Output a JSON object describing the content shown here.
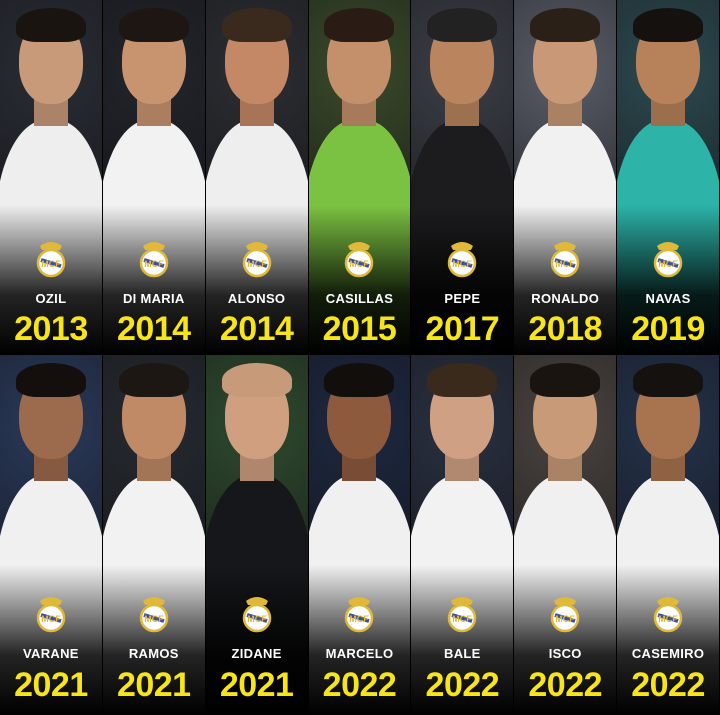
{
  "players": [
    {
      "name": "OZIL",
      "year": "2013",
      "kit": "#eeeeee",
      "bg": "#2a2d35",
      "hair": "#1a1410",
      "skin": "#c99a7a"
    },
    {
      "name": "DI MARIA",
      "year": "2014",
      "kit": "#f2f2f2",
      "bg": "#22252b",
      "hair": "#1d1612",
      "skin": "#c8946f"
    },
    {
      "name": "ALONSO",
      "year": "2014",
      "kit": "#eeeeee",
      "bg": "#2c2e33",
      "hair": "#3a2a1e",
      "skin": "#c48866"
    },
    {
      "name": "CASILLAS",
      "year": "2015",
      "kit": "#7cc242",
      "bg": "#3a4a2a",
      "hair": "#2a1c14",
      "skin": "#c4906c"
    },
    {
      "name": "PEPE",
      "year": "2017",
      "kit": "#1c1c1e",
      "bg": "#3b3f46",
      "hair": "#222",
      "skin": "#b9845e"
    },
    {
      "name": "RONALDO",
      "year": "2018",
      "kit": "#f1f1f1",
      "bg": "#5a5e68",
      "hair": "#2a2018",
      "skin": "#c99876"
    },
    {
      "name": "NAVAS",
      "year": "2019",
      "kit": "#2db3a8",
      "bg": "#2d4a50",
      "hair": "#15110e",
      "skin": "#b78259"
    },
    {
      "name": "VARANE",
      "year": "2021",
      "kit": "#f0f0f0",
      "bg": "#2a3a5a",
      "hair": "#140f0c",
      "skin": "#9c6a4c"
    },
    {
      "name": "RAMOS",
      "year": "2021",
      "kit": "#f2f2f2",
      "bg": "#262a30",
      "hair": "#1c1712",
      "skin": "#c08a66"
    },
    {
      "name": "ZIDANE",
      "year": "2021",
      "kit": "#16171a",
      "bg": "#2f4a2e",
      "hair": "#c79a7a",
      "skin": "#cf9f80"
    },
    {
      "name": "MARCELO",
      "year": "2022",
      "kit": "#f0f0f0",
      "bg": "#1e2840",
      "hair": "#120e0c",
      "skin": "#8d5a3e"
    },
    {
      "name": "BALE",
      "year": "2022",
      "kit": "#f2f2f2",
      "bg": "#2a3040",
      "hair": "#3a2a1c",
      "skin": "#d0a084"
    },
    {
      "name": "ISCO",
      "year": "2022",
      "kit": "#f0f0f0",
      "bg": "#4a4440",
      "hair": "#1a1410",
      "skin": "#c89a78"
    },
    {
      "name": "CASEMIRO",
      "year": "2022",
      "kit": "#f0f0f0",
      "bg": "#24324a",
      "hair": "#15110e",
      "skin": "#a8734f"
    }
  ],
  "colors": {
    "year": "#f7e51a",
    "name": "#ffffff",
    "crest_gold": "#e0b93a",
    "crest_blue": "#3a4fa0"
  },
  "icons": {
    "badge": "real-madrid-crest"
  }
}
